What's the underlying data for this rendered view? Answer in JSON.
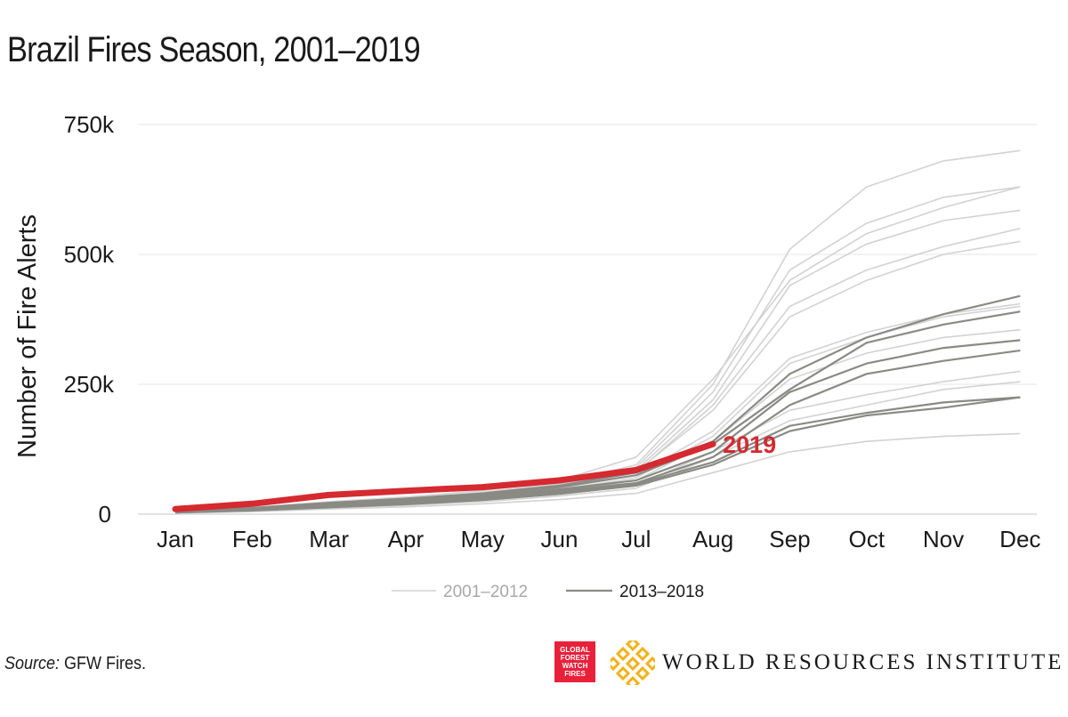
{
  "title": "Brazil Fires Season, 2001–2019",
  "source_label": "Source:",
  "source_text": " GFW Fires.",
  "logos": {
    "gfw": [
      "GLOBAL",
      "FOREST",
      "WATCH",
      "FIRES"
    ],
    "wri": "WORLD RESOURCES INSTITUTE"
  },
  "colors": {
    "light_series": "#d2d2d2",
    "dark_series": "#8a8a85",
    "highlight": "#d42a30",
    "grid": "#ededed",
    "gfw": "#e8203a",
    "wri": "#f2b21a"
  },
  "chart_data": {
    "type": "line",
    "ylabel": "Number of Fire Alerts",
    "xlabel": "",
    "categories": [
      "Jan",
      "Feb",
      "Mar",
      "Apr",
      "May",
      "Jun",
      "Jul",
      "Aug",
      "Sep",
      "Oct",
      "Nov",
      "Dec"
    ],
    "ylim": [
      0,
      750000
    ],
    "yticks": [
      0,
      250000,
      500000,
      750000
    ],
    "ytick_labels": [
      "0",
      "250k",
      "500k",
      "750k"
    ],
    "grid": true,
    "legend": {
      "position": "bottom",
      "entries": [
        "2001–2012",
        "2013–2018"
      ]
    },
    "highlight_label": "2019",
    "groups": [
      {
        "name": "2001–2012",
        "style": "light",
        "series": [
          {
            "values": [
              5000,
              12000,
              22000,
              30000,
              42000,
              60000,
              95000,
              250000,
              510000,
              630000,
              680000,
              700000
            ]
          },
          {
            "values": [
              4000,
              11000,
              20000,
              28000,
              40000,
              58000,
              90000,
              235000,
              470000,
              560000,
              610000,
              630000
            ]
          },
          {
            "values": [
              6000,
              13000,
              24000,
              33000,
              45000,
              65000,
              110000,
              260000,
              450000,
              540000,
              590000,
              630000
            ]
          },
          {
            "values": [
              5000,
              12000,
              21000,
              29000,
              41000,
              57000,
              85000,
              220000,
              440000,
              520000,
              565000,
              585000
            ]
          },
          {
            "values": [
              4000,
              10000,
              18000,
              26000,
              38000,
              55000,
              80000,
              210000,
              400000,
              470000,
              515000,
              550000
            ]
          },
          {
            "values": [
              5000,
              11000,
              20000,
              27000,
              39000,
              56000,
              82000,
              200000,
              380000,
              450000,
              500000,
              525000
            ]
          },
          {
            "values": [
              4000,
              10000,
              17000,
              25000,
              35000,
              50000,
              75000,
              160000,
              300000,
              350000,
              385000,
              405000
            ]
          },
          {
            "values": [
              3000,
              9000,
              16000,
              23000,
              33000,
              47000,
              70000,
              150000,
              290000,
              340000,
              380000,
              400000
            ]
          },
          {
            "values": [
              3000,
              8000,
              15000,
              22000,
              31000,
              44000,
              65000,
              140000,
              260000,
              310000,
              340000,
              355000
            ]
          },
          {
            "values": [
              3000,
              7000,
              13000,
              19000,
              27000,
              38000,
              55000,
              120000,
              200000,
              230000,
              255000,
              275000
            ]
          },
          {
            "values": [
              2000,
              6000,
              12000,
              17000,
              24000,
              35000,
              50000,
              110000,
              180000,
              210000,
              240000,
              255000
            ]
          },
          {
            "values": [
              2000,
              5000,
              10000,
              14000,
              20000,
              28000,
              40000,
              80000,
              120000,
              140000,
              150000,
              155000
            ]
          }
        ]
      },
      {
        "name": "2013–2018",
        "style": "dark",
        "series": [
          {
            "values": [
              5000,
              12000,
              22000,
              30000,
              40000,
              55000,
              80000,
              140000,
              270000,
              340000,
              385000,
              420000
            ]
          },
          {
            "values": [
              4000,
              11000,
              20000,
              27000,
              37000,
              52000,
              75000,
              135000,
              240000,
              330000,
              365000,
              390000
            ]
          },
          {
            "values": [
              4000,
              10000,
              18000,
              25000,
              34000,
              48000,
              65000,
              120000,
              235000,
              290000,
              320000,
              335000
            ]
          },
          {
            "values": [
              3000,
              9000,
              16000,
              23000,
              32000,
              45000,
              60000,
              110000,
              210000,
              270000,
              295000,
              315000
            ]
          },
          {
            "values": [
              3000,
              8000,
              15000,
              21000,
              29000,
              42000,
              58000,
              100000,
              170000,
              195000,
              215000,
              225000
            ]
          },
          {
            "values": [
              3000,
              7000,
              13000,
              19000,
              27000,
              39000,
              55000,
              95000,
              160000,
              190000,
              205000,
              225000
            ]
          }
        ]
      }
    ],
    "highlight_series": {
      "name": "2019",
      "values": [
        10000,
        20000,
        37000,
        45000,
        52000,
        65000,
        85000,
        135000
      ]
    }
  }
}
